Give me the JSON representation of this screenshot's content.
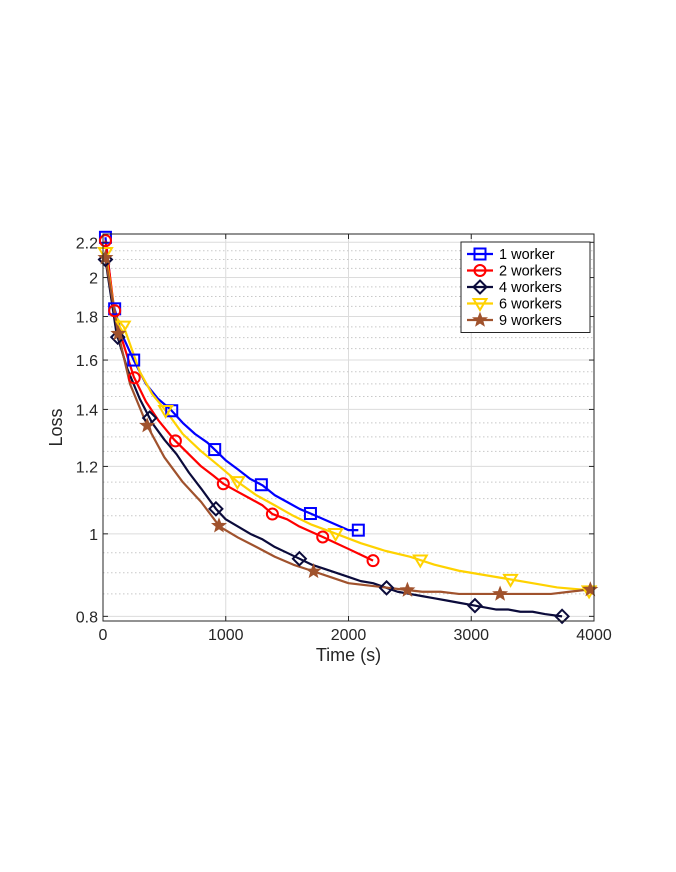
{
  "chart_data": {
    "type": "line",
    "title": "",
    "xlabel": "Time (s)",
    "ylabel": "Loss",
    "xlim": [
      0,
      4000
    ],
    "ylim": [
      0.79,
      2.25
    ],
    "yscale": "log",
    "xticks": [
      "0",
      "1000",
      "2000",
      "3000",
      "4000"
    ],
    "yticks": [
      "0.8",
      "1",
      "1.2",
      "1.4",
      "1.6",
      "1.8",
      "2",
      "2.2"
    ],
    "grid": true,
    "legend_position": "top-right",
    "series": [
      {
        "name": "1 worker",
        "color": "#0000ff",
        "marker": "square",
        "x": [
          20,
          80,
          150,
          250,
          350,
          450,
          550,
          650,
          750,
          850,
          900,
          1000,
          1100,
          1200,
          1300,
          1400,
          1500,
          1600,
          1700,
          1800,
          1900,
          2000,
          2080
        ],
        "y": [
          2.23,
          1.87,
          1.72,
          1.6,
          1.5,
          1.44,
          1.4,
          1.35,
          1.31,
          1.28,
          1.26,
          1.22,
          1.19,
          1.16,
          1.14,
          1.11,
          1.09,
          1.07,
          1.055,
          1.04,
          1.025,
          1.01,
          1.01
        ],
        "marker_x": [
          20,
          95,
          250,
          560,
          910,
          1290,
          1690,
          2080
        ]
      },
      {
        "name": "2 workers",
        "color": "#ff0000",
        "marker": "circle",
        "x": [
          20,
          90,
          150,
          250,
          350,
          450,
          580,
          700,
          800,
          900,
          980,
          1100,
          1200,
          1300,
          1380,
          1500,
          1600,
          1700,
          1800,
          1900,
          2000,
          2100,
          2200
        ],
        "y": [
          2.21,
          1.84,
          1.7,
          1.53,
          1.43,
          1.36,
          1.29,
          1.24,
          1.2,
          1.17,
          1.145,
          1.12,
          1.1,
          1.08,
          1.055,
          1.04,
          1.02,
          1.005,
          0.99,
          0.975,
          0.96,
          0.945,
          0.93
        ],
        "marker_x": [
          20,
          95,
          255,
          590,
          980,
          1380,
          1790,
          2200
        ]
      },
      {
        "name": "4 workers",
        "color": "#0b0b3b",
        "marker": "diamond",
        "x": [
          20,
          110,
          200,
          300,
          400,
          500,
          600,
          700,
          800,
          920,
          1000,
          1100,
          1200,
          1300,
          1400,
          1500,
          1600,
          1700,
          1800,
          1900,
          2000,
          2100,
          2200,
          2300,
          2400,
          2500,
          2600,
          2700,
          2800,
          2900,
          3000,
          3100,
          3200,
          3300,
          3400,
          3500,
          3600,
          3740
        ],
        "y": [
          2.1,
          1.72,
          1.56,
          1.44,
          1.35,
          1.29,
          1.24,
          1.18,
          1.13,
          1.07,
          1.04,
          1.02,
          1.0,
          0.985,
          0.965,
          0.95,
          0.935,
          0.92,
          0.91,
          0.9,
          0.89,
          0.88,
          0.875,
          0.865,
          0.855,
          0.85,
          0.845,
          0.84,
          0.835,
          0.83,
          0.825,
          0.82,
          0.815,
          0.815,
          0.81,
          0.81,
          0.805,
          0.8
        ],
        "marker_x": [
          20,
          120,
          380,
          920,
          1600,
          2310,
          3030,
          3740
        ]
      },
      {
        "name": "6 workers",
        "color": "#ffd200",
        "marker": "triangle-down",
        "x": [
          20,
          100,
          170,
          300,
          400,
          520,
          650,
          800,
          950,
          1100,
          1250,
          1400,
          1550,
          1700,
          1900,
          2100,
          2300,
          2500,
          2700,
          2900,
          3100,
          3300,
          3500,
          3700,
          3900,
          4000
        ],
        "y": [
          2.14,
          1.8,
          1.75,
          1.55,
          1.46,
          1.39,
          1.31,
          1.25,
          1.2,
          1.15,
          1.11,
          1.08,
          1.05,
          1.025,
          1.0,
          0.975,
          0.955,
          0.94,
          0.92,
          0.905,
          0.895,
          0.885,
          0.875,
          0.865,
          0.86,
          0.855
        ],
        "marker_x": [
          20,
          165,
          510,
          1095,
          1895,
          2585,
          3320,
          3960
        ]
      },
      {
        "name": "9 workers",
        "color": "#a0522d",
        "marker": "star",
        "x": [
          20,
          120,
          220,
          360,
          500,
          650,
          800,
          950,
          1100,
          1250,
          1400,
          1550,
          1700,
          1850,
          2000,
          2150,
          2300,
          2450,
          2600,
          2750,
          2900,
          3050,
          3200,
          3350,
          3500,
          3650,
          3800,
          3950,
          4000
        ],
        "y": [
          2.11,
          1.73,
          1.5,
          1.34,
          1.23,
          1.15,
          1.09,
          1.02,
          0.99,
          0.965,
          0.94,
          0.92,
          0.905,
          0.89,
          0.875,
          0.87,
          0.865,
          0.86,
          0.855,
          0.855,
          0.85,
          0.85,
          0.85,
          0.85,
          0.85,
          0.85,
          0.855,
          0.86,
          0.86
        ],
        "marker_x": [
          20,
          125,
          360,
          945,
          1715,
          2480,
          3235,
          3970
        ]
      }
    ]
  }
}
